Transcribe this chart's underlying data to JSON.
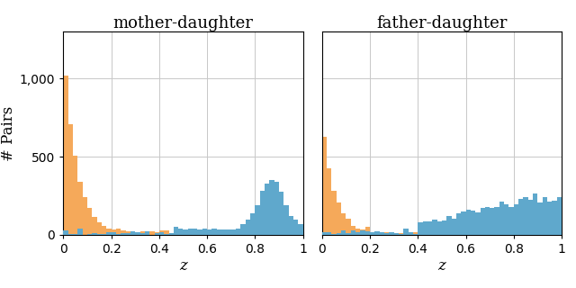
{
  "title_left": "mother-daughter",
  "title_right": "father-daughter",
  "xlabel": "z",
  "ylabel": "# Pairs",
  "ylim": [
    0,
    1300
  ],
  "xlim": [
    0,
    1.0
  ],
  "yticks": [
    0,
    500,
    1000
  ],
  "xticks": [
    0,
    0.2,
    0.4,
    0.6,
    0.8,
    1
  ],
  "n_bins": 50,
  "orange_color": "#f5a95a",
  "blue_color": "#5fa8cc",
  "background_color": "#ffffff",
  "grid_color": "#c8c8c8",
  "title_fontsize": 13,
  "label_fontsize": 12,
  "tick_fontsize": 10
}
